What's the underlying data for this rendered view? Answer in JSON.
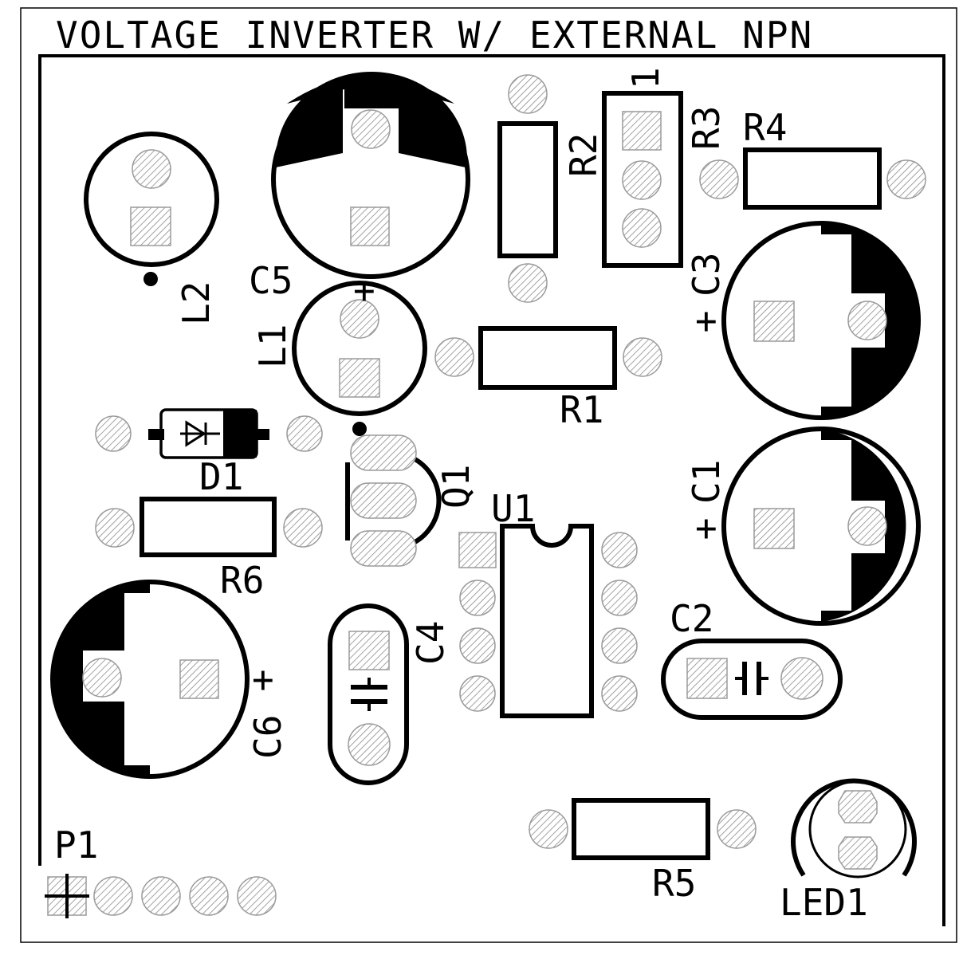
{
  "title": "VOLTAGE INVERTER W/ EXTERNAL NPN",
  "labels": {
    "c5": "C5",
    "l1": "L1",
    "l2": "L2",
    "r1": "R1",
    "r2": "R2",
    "r3": "R3",
    "r3_pin1": "1",
    "r4": "R4",
    "r5": "R5",
    "r6": "R6",
    "c1": "C1",
    "c2": "C2",
    "c3": "C3",
    "c4": "C4",
    "c6": "C6",
    "d1": "D1",
    "q1": "Q1",
    "u1": "U1",
    "p1": "P1",
    "led1": "LED1",
    "plus_c5": "+",
    "plus_c3": "+",
    "plus_c1": "+",
    "plus_c6": "+"
  },
  "colors": {
    "silkscreen": "#000000",
    "pad_hatch": "#8c8c8c",
    "background": "#ffffff"
  }
}
